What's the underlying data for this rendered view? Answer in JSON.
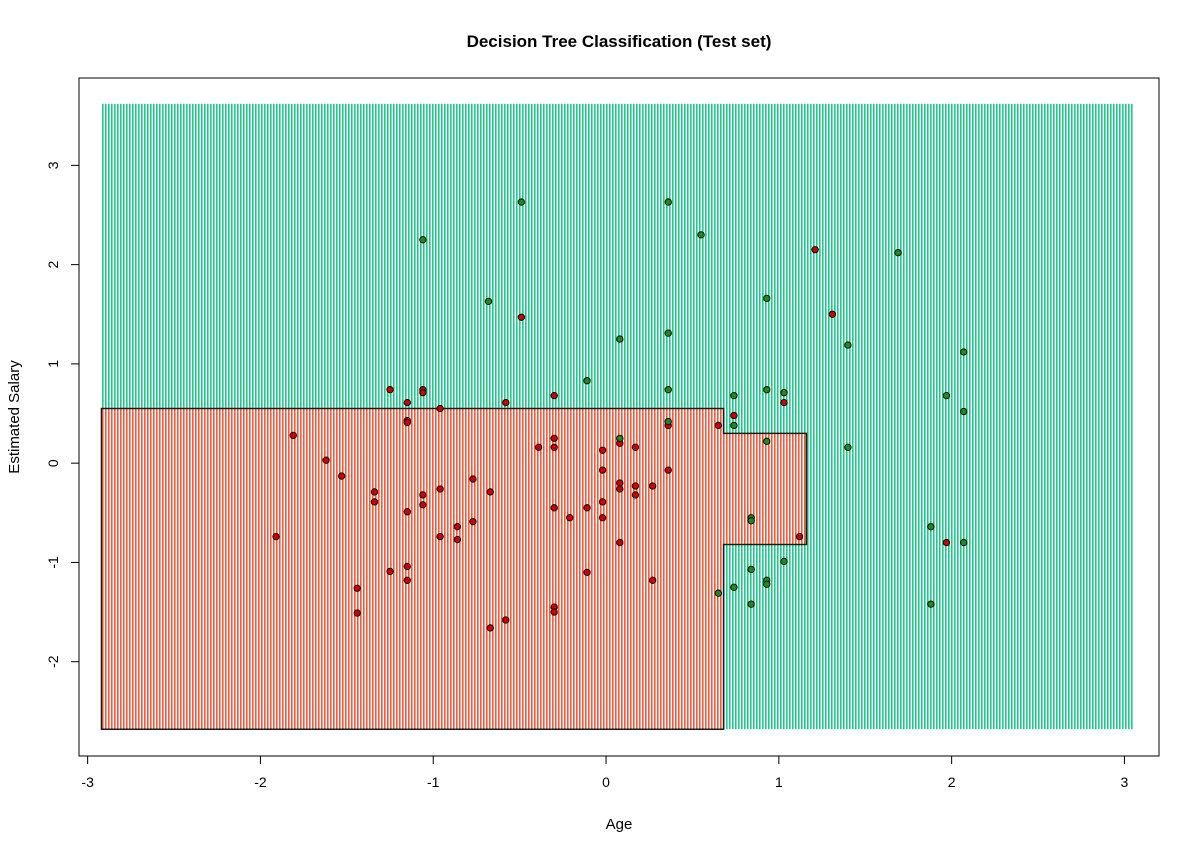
{
  "chart_data": {
    "type": "scatter",
    "title": "Decision Tree Classification (Test set)",
    "xlabel": "Age",
    "ylabel": "Estimated Salary",
    "xlim": [
      -3.05,
      3.2
    ],
    "ylim": [
      -2.95,
      3.88
    ],
    "xticks": [
      "-3",
      "-2",
      "-1",
      "0",
      "1",
      "2",
      "3"
    ],
    "yticks": [
      "-2",
      "-1",
      "0",
      "1",
      "2",
      "3"
    ],
    "region_colors": {
      "class_0": "#f15a3c",
      "class_1": "#1ec98a"
    },
    "point_colors": {
      "class_0": "#cc0000",
      "class_1": "#1f8a1f"
    },
    "grid_extent": {
      "x": [
        -2.92,
        3.05
      ],
      "y": [
        -2.68,
        3.62
      ]
    },
    "class_0_region_polygon": [
      [
        -2.92,
        -2.68
      ],
      [
        0.68,
        -2.68
      ],
      [
        0.68,
        -0.82
      ],
      [
        1.16,
        -0.82
      ],
      [
        1.16,
        0.3
      ],
      [
        0.68,
        0.3
      ],
      [
        0.68,
        0.55
      ],
      [
        -2.92,
        0.55
      ]
    ],
    "series": [
      {
        "class": 0,
        "points": [
          [
            -1.91,
            -0.74
          ],
          [
            -1.81,
            0.28
          ],
          [
            -1.62,
            0.03
          ],
          [
            -1.53,
            -0.13
          ],
          [
            -1.44,
            -1.26
          ],
          [
            -1.44,
            -1.51
          ],
          [
            -1.34,
            -0.29
          ],
          [
            -1.34,
            -0.39
          ],
          [
            -1.25,
            0.74
          ],
          [
            -1.25,
            -1.09
          ],
          [
            -1.15,
            0.61
          ],
          [
            -1.15,
            0.43
          ],
          [
            -1.15,
            0.41
          ],
          [
            -1.15,
            -0.49
          ],
          [
            -1.15,
            -1.04
          ],
          [
            -1.15,
            -1.18
          ],
          [
            -1.06,
            0.74
          ],
          [
            -1.06,
            0.71
          ],
          [
            -1.06,
            -0.32
          ],
          [
            -1.06,
            -0.42
          ],
          [
            -0.96,
            0.55
          ],
          [
            -0.96,
            -0.26
          ],
          [
            -0.96,
            -0.74
          ],
          [
            -0.86,
            -0.64
          ],
          [
            -0.86,
            -0.77
          ],
          [
            -0.77,
            -0.16
          ],
          [
            -0.77,
            -0.59
          ],
          [
            -0.67,
            -0.29
          ],
          [
            -0.67,
            -1.66
          ],
          [
            -0.58,
            0.61
          ],
          [
            -0.58,
            -1.58
          ],
          [
            -0.49,
            1.47
          ],
          [
            -0.39,
            0.16
          ],
          [
            -0.3,
            0.68
          ],
          [
            -0.3,
            0.25
          ],
          [
            -0.3,
            0.16
          ],
          [
            -0.3,
            -0.45
          ],
          [
            -0.3,
            -1.45
          ],
          [
            -0.3,
            -1.5
          ],
          [
            -0.21,
            -0.55
          ],
          [
            -0.11,
            -0.45
          ],
          [
            -0.11,
            -1.1
          ],
          [
            -0.02,
            0.13
          ],
          [
            -0.02,
            -0.07
          ],
          [
            -0.02,
            -0.39
          ],
          [
            -0.02,
            -0.55
          ],
          [
            0.08,
            0.2
          ],
          [
            0.08,
            -0.2
          ],
          [
            0.08,
            -0.26
          ],
          [
            0.08,
            -0.8
          ],
          [
            0.17,
            0.16
          ],
          [
            0.17,
            -0.23
          ],
          [
            0.17,
            -0.32
          ],
          [
            0.27,
            -0.23
          ],
          [
            0.27,
            -1.18
          ],
          [
            0.36,
            0.38
          ],
          [
            0.36,
            -0.07
          ],
          [
            0.65,
            0.38
          ],
          [
            0.74,
            0.48
          ],
          [
            1.03,
            0.61
          ],
          [
            1.12,
            -0.74
          ],
          [
            1.21,
            2.15
          ],
          [
            1.31,
            1.5
          ],
          [
            1.97,
            -0.8
          ]
        ]
      },
      {
        "class": 1,
        "points": [
          [
            -1.06,
            2.25
          ],
          [
            -0.49,
            2.63
          ],
          [
            -0.68,
            1.63
          ],
          [
            -0.11,
            0.83
          ],
          [
            0.08,
            1.25
          ],
          [
            0.08,
            0.25
          ],
          [
            0.36,
            2.63
          ],
          [
            0.36,
            1.31
          ],
          [
            0.36,
            0.74
          ],
          [
            0.36,
            0.42
          ],
          [
            0.55,
            2.3
          ],
          [
            0.65,
            -1.31
          ],
          [
            0.74,
            0.68
          ],
          [
            0.74,
            0.38
          ],
          [
            0.74,
            -1.25
          ],
          [
            0.84,
            -0.55
          ],
          [
            0.84,
            -0.58
          ],
          [
            0.84,
            -1.07
          ],
          [
            0.84,
            -1.42
          ],
          [
            0.93,
            1.66
          ],
          [
            0.93,
            0.74
          ],
          [
            0.93,
            0.22
          ],
          [
            0.93,
            -1.18
          ],
          [
            0.93,
            -1.22
          ],
          [
            1.03,
            0.71
          ],
          [
            1.03,
            -0.99
          ],
          [
            1.4,
            1.19
          ],
          [
            1.4,
            0.16
          ],
          [
            1.69,
            2.12
          ],
          [
            1.88,
            -0.64
          ],
          [
            1.88,
            -1.42
          ],
          [
            1.97,
            0.68
          ],
          [
            2.07,
            1.12
          ],
          [
            2.07,
            0.52
          ],
          [
            2.07,
            -0.8
          ]
        ]
      }
    ]
  }
}
